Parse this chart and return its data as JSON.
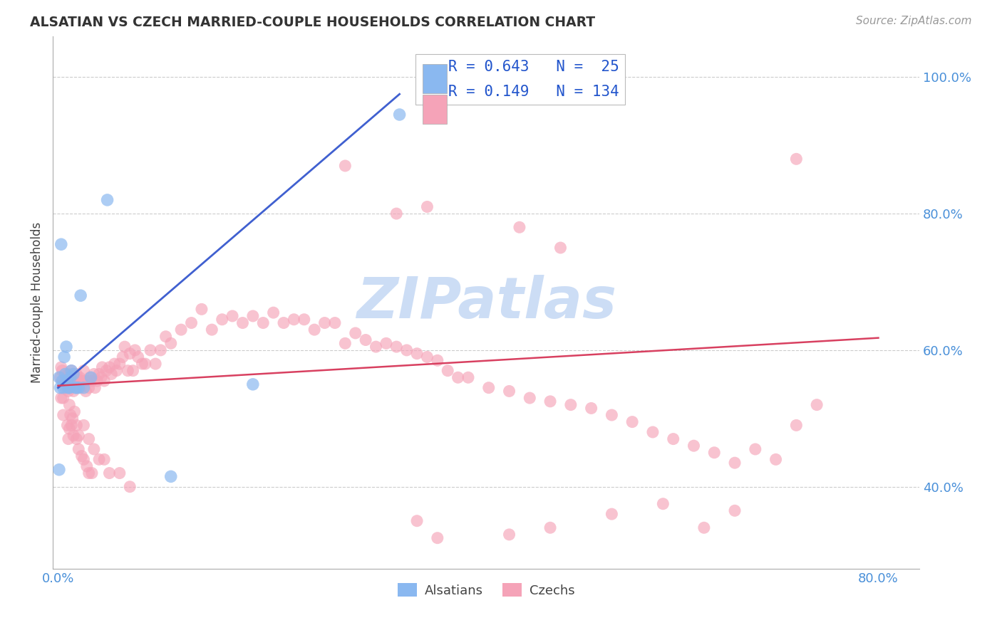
{
  "title": "ALSATIAN VS CZECH MARRIED-COUPLE HOUSEHOLDS CORRELATION CHART",
  "source": "Source: ZipAtlas.com",
  "ylabel": "Married-couple Households",
  "xlim": [
    -0.005,
    0.84
  ],
  "ylim": [
    0.28,
    1.06
  ],
  "xtick_positions": [
    0.0,
    0.8
  ],
  "xticklabels": [
    "0.0%",
    "80.0%"
  ],
  "ytick_positions": [
    0.4,
    0.6,
    0.8,
    1.0
  ],
  "yticklabels": [
    "40.0%",
    "60.0%",
    "80.0%",
    "100.0%"
  ],
  "legend_R_alsatian": "0.643",
  "legend_N_alsatian": "25",
  "legend_R_czech": "0.149",
  "legend_N_czech": "134",
  "alsatian_color": "#8ab8f0",
  "czech_color": "#f5a3b8",
  "alsatian_line_color": "#4060d0",
  "czech_line_color": "#d84060",
  "watermark_text": "ZIPatlas",
  "watermark_color": "#ccddf5",
  "als_line_x0": 0.0,
  "als_line_y0": 0.545,
  "als_line_x1": 0.333,
  "als_line_y1": 0.975,
  "cz_line_x0": 0.0,
  "cz_line_y0": 0.548,
  "cz_line_x1": 0.8,
  "cz_line_y1": 0.618,
  "alsatian_x": [
    0.001,
    0.001,
    0.002,
    0.003,
    0.004,
    0.005,
    0.006,
    0.007,
    0.008,
    0.009,
    0.01,
    0.011,
    0.012,
    0.013,
    0.015,
    0.017,
    0.018,
    0.02,
    0.022,
    0.025,
    0.032,
    0.048,
    0.11,
    0.19,
    0.333
  ],
  "alsatian_y": [
    0.56,
    0.425,
    0.545,
    0.755,
    0.555,
    0.545,
    0.59,
    0.565,
    0.605,
    0.555,
    0.545,
    0.545,
    0.56,
    0.57,
    0.565,
    0.545,
    0.545,
    0.545,
    0.68,
    0.545,
    0.56,
    0.82,
    0.415,
    0.55,
    0.945
  ],
  "czech_x": [
    0.002,
    0.003,
    0.004,
    0.005,
    0.005,
    0.006,
    0.007,
    0.008,
    0.009,
    0.01,
    0.01,
    0.011,
    0.012,
    0.012,
    0.013,
    0.014,
    0.015,
    0.015,
    0.016,
    0.017,
    0.018,
    0.019,
    0.02,
    0.021,
    0.022,
    0.023,
    0.025,
    0.026,
    0.027,
    0.028,
    0.03,
    0.031,
    0.033,
    0.035,
    0.036,
    0.038,
    0.04,
    0.042,
    0.043,
    0.045,
    0.047,
    0.05,
    0.052,
    0.055,
    0.057,
    0.06,
    0.063,
    0.065,
    0.068,
    0.07,
    0.073,
    0.075,
    0.078,
    0.082,
    0.085,
    0.09,
    0.095,
    0.1,
    0.105,
    0.11,
    0.12,
    0.13,
    0.14,
    0.15,
    0.16,
    0.17,
    0.18,
    0.19,
    0.2,
    0.21,
    0.22,
    0.23,
    0.24,
    0.25,
    0.26,
    0.27,
    0.28,
    0.29,
    0.3,
    0.31,
    0.32,
    0.33,
    0.34,
    0.35,
    0.36,
    0.37,
    0.38,
    0.39,
    0.4,
    0.42,
    0.44,
    0.46,
    0.48,
    0.5,
    0.52,
    0.54,
    0.56,
    0.58,
    0.6,
    0.62,
    0.64,
    0.66,
    0.68,
    0.7,
    0.72,
    0.74,
    0.003,
    0.005,
    0.007,
    0.009,
    0.011,
    0.013,
    0.015,
    0.018,
    0.02,
    0.023,
    0.025,
    0.028,
    0.03,
    0.033,
    0.01,
    0.012,
    0.014,
    0.016,
    0.018,
    0.02,
    0.025,
    0.03,
    0.035,
    0.04,
    0.045,
    0.05,
    0.06,
    0.07
  ],
  "czech_y": [
    0.56,
    0.575,
    0.57,
    0.555,
    0.53,
    0.55,
    0.555,
    0.56,
    0.545,
    0.565,
    0.54,
    0.52,
    0.56,
    0.545,
    0.57,
    0.555,
    0.565,
    0.54,
    0.555,
    0.56,
    0.565,
    0.55,
    0.555,
    0.56,
    0.545,
    0.555,
    0.57,
    0.555,
    0.54,
    0.555,
    0.545,
    0.56,
    0.555,
    0.565,
    0.545,
    0.555,
    0.565,
    0.56,
    0.575,
    0.555,
    0.57,
    0.575,
    0.565,
    0.58,
    0.57,
    0.58,
    0.59,
    0.605,
    0.57,
    0.595,
    0.57,
    0.6,
    0.59,
    0.58,
    0.58,
    0.6,
    0.58,
    0.6,
    0.62,
    0.61,
    0.63,
    0.64,
    0.66,
    0.63,
    0.645,
    0.65,
    0.64,
    0.65,
    0.64,
    0.655,
    0.64,
    0.645,
    0.645,
    0.63,
    0.64,
    0.64,
    0.61,
    0.625,
    0.615,
    0.605,
    0.61,
    0.605,
    0.6,
    0.595,
    0.59,
    0.585,
    0.57,
    0.56,
    0.56,
    0.545,
    0.54,
    0.53,
    0.525,
    0.52,
    0.515,
    0.505,
    0.495,
    0.48,
    0.47,
    0.46,
    0.45,
    0.435,
    0.455,
    0.44,
    0.49,
    0.52,
    0.53,
    0.505,
    0.545,
    0.49,
    0.485,
    0.49,
    0.475,
    0.47,
    0.455,
    0.445,
    0.44,
    0.43,
    0.42,
    0.42,
    0.47,
    0.505,
    0.5,
    0.51,
    0.49,
    0.475,
    0.49,
    0.47,
    0.455,
    0.44,
    0.44,
    0.42,
    0.42,
    0.4
  ],
  "czech_y_extra": [
    0.87,
    0.88,
    0.8,
    0.81,
    0.78,
    0.75,
    0.34,
    0.35,
    0.36,
    0.375,
    0.34,
    0.365,
    0.325,
    0.33
  ],
  "czech_x_extra": [
    0.28,
    0.72,
    0.33,
    0.36,
    0.45,
    0.49,
    0.48,
    0.35,
    0.54,
    0.59,
    0.63,
    0.66,
    0.37,
    0.44
  ]
}
